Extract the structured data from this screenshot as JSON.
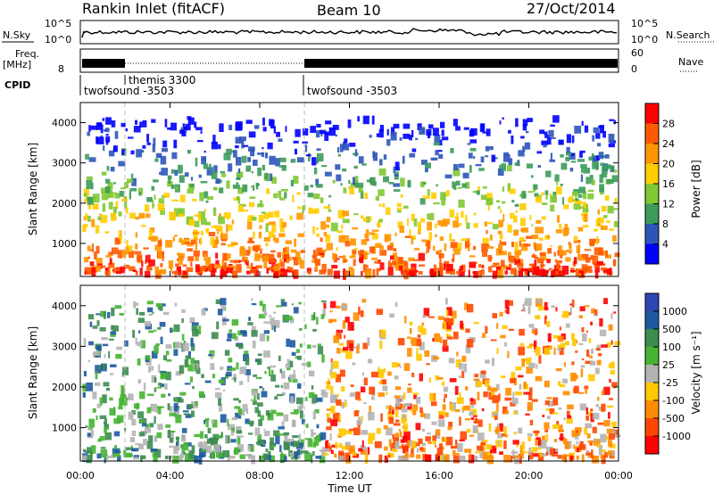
{
  "header": {
    "title": "Rankin Inlet (fitACF)",
    "beam": "Beam 10",
    "date": "27/Oct/2014"
  },
  "noise_panel": {
    "left_label": "N.Sky",
    "right_label": "N.Search",
    "left_ticks": [
      "10^5",
      "10^0"
    ],
    "right_ticks": [
      "10^5",
      "10^0"
    ]
  },
  "freq_panel": {
    "left_label_top": "Freq.",
    "left_label_bottom": "[MHz]",
    "right_label": "Nave",
    "left_ticks": [
      "8"
    ],
    "right_ticks": [
      "60",
      "0"
    ]
  },
  "cpid_panel": {
    "label": "CPID",
    "entries": [
      {
        "name": "twofsound -3503",
        "start": 0.0
      },
      {
        "name": "themis 3300",
        "start": 2.0
      },
      {
        "name": "twofsound -3503",
        "start": 10.0
      }
    ]
  },
  "time_axis": {
    "label": "Time UT",
    "ticks": [
      "00:00",
      "04:00",
      "08:00",
      "12:00",
      "16:00",
      "20:00",
      "00:00"
    ],
    "tick_hours": [
      0,
      4,
      8,
      12,
      16,
      20,
      24
    ]
  },
  "chart_data": [
    {
      "type": "heatmap",
      "name": "power",
      "ylabel": "Slant Range [km]",
      "ylim": [
        180,
        4500
      ],
      "yticks": [
        "4000",
        "3000",
        "2000",
        "1000"
      ],
      "ytick_values": [
        4000,
        3000,
        2000,
        1000
      ],
      "colorbar": {
        "label": "Power [dB]",
        "ticks": [
          "28",
          "24",
          "20",
          "16",
          "12",
          "8",
          "4"
        ],
        "colors": [
          "#ff0000",
          "#ff5a00",
          "#ff9600",
          "#ffcd00",
          "#7fc832",
          "#3c9b5a",
          "#2d55b9",
          "#0000ff"
        ]
      }
    },
    {
      "type": "heatmap",
      "name": "velocity",
      "ylabel": "Slant Range [km]",
      "ylim": [
        180,
        4500
      ],
      "yticks": [
        "4000",
        "3000",
        "2000",
        "1000"
      ],
      "ytick_values": [
        4000,
        3000,
        2000,
        1000
      ],
      "colorbar": {
        "label": "Velocity [m s⁻¹]",
        "ticks": [
          "1000",
          "500",
          "100",
          "25",
          "-25",
          "-100",
          "-500",
          "-1000"
        ],
        "colors": [
          "#2d46b4",
          "#1e5aa0",
          "#3c8c50",
          "#46b432",
          "#b4b4b4",
          "#ffc800",
          "#ff8c00",
          "#ff4600",
          "#ff0000"
        ]
      }
    }
  ]
}
